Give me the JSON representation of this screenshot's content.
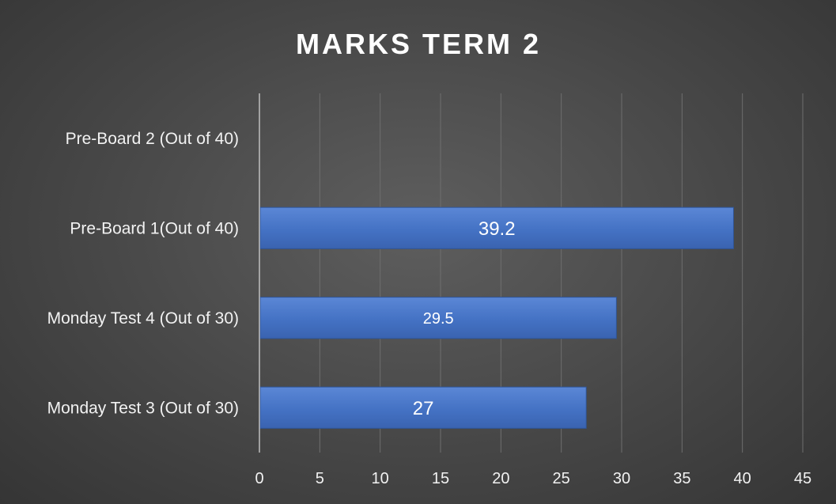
{
  "chart_data": {
    "type": "bar",
    "orientation": "horizontal",
    "title": "MARKS TERM 2",
    "categories": [
      "Pre-Board 2 (Out of 40)",
      "Pre-Board 1(Out of 40)",
      "Monday Test 4 (Out of 30)",
      "Monday Test 3 (Out of 30)"
    ],
    "values": [
      null,
      39.2,
      29.5,
      27
    ],
    "data_labels": [
      "",
      "39.2",
      "29.5",
      "27"
    ],
    "xlim": [
      0,
      45
    ],
    "xticks": [
      0,
      5,
      10,
      15,
      20,
      25,
      30,
      35,
      40,
      45
    ],
    "grid": true,
    "legend": "none",
    "colors": {
      "bar": "#4472c4",
      "bar_dark": "#2f5597",
      "grid": "#6e6e6e",
      "axis": "#bfbfbf"
    }
  }
}
